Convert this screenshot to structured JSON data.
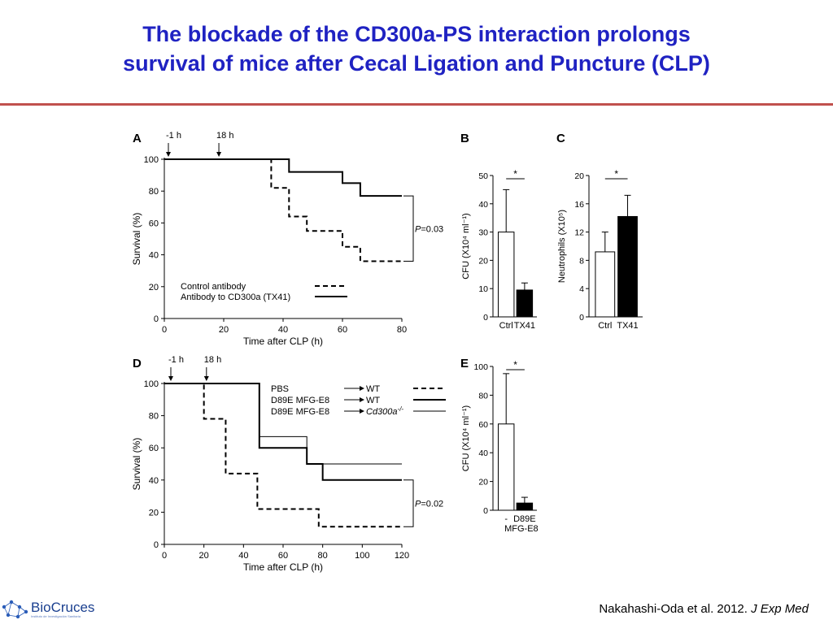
{
  "slide": {
    "title_line1": "The blockade of the CD300a-PS interaction prolongs",
    "title_line2": "survival of mice after Cecal Ligation and Puncture (CLP)",
    "citation_prefix": "Nakahashi-Oda et al. 2012.",
    "citation_journal": "J Exp Med",
    "logo_name": "BioCruces",
    "logo_subtext": "Instituto de Investigación Sanitaria"
  },
  "chart_data": [
    {
      "panel": "A",
      "type": "line",
      "xlabel": "Time after CLP (h)",
      "ylabel": "Survival (%)",
      "xlim": [
        0,
        80
      ],
      "ylim": [
        0,
        100
      ],
      "x_ticks": [
        "0",
        "20",
        "40",
        "60",
        "80"
      ],
      "y_ticks": [
        "0",
        "20",
        "40",
        "60",
        "80",
        "100"
      ],
      "arrows": [
        {
          "label": "-1 h",
          "x": 0
        },
        {
          "label": "18 h",
          "x": 17
        }
      ],
      "p_value": "P=0.03",
      "legend_placement": "bottom",
      "series": [
        {
          "name": "Control antibody",
          "style": "dashed",
          "x": [
            0,
            36,
            36,
            42,
            42,
            48,
            48,
            60,
            60,
            66,
            66,
            80
          ],
          "y": [
            100,
            100,
            82,
            82,
            64,
            64,
            55,
            55,
            45,
            45,
            36,
            36
          ]
        },
        {
          "name": "Antibody to CD300a (TX41)",
          "style": "solid",
          "x": [
            0,
            42,
            42,
            60,
            60,
            66,
            66,
            80
          ],
          "y": [
            100,
            100,
            92,
            92,
            85,
            85,
            77,
            77
          ]
        }
      ]
    },
    {
      "panel": "B",
      "type": "bar",
      "ylabel": "CFU  (X10⁴ ml⁻¹)",
      "categories": [
        "Ctrl",
        "TX41"
      ],
      "values": [
        30,
        9.5
      ],
      "errors": [
        15,
        2.5
      ],
      "ylim": [
        0,
        50
      ],
      "y_ticks": [
        "0",
        "10",
        "20",
        "30",
        "40",
        "50"
      ],
      "significance": "*",
      "fills": [
        "#ffffff",
        "#000000"
      ]
    },
    {
      "panel": "C",
      "type": "bar",
      "ylabel": "Neutrophils (X10⁵)",
      "categories": [
        "Ctrl",
        "TX41"
      ],
      "values": [
        9.2,
        14.2
      ],
      "errors": [
        2.8,
        3.0
      ],
      "ylim": [
        0,
        20
      ],
      "y_ticks": [
        "0",
        "4",
        "8",
        "12",
        "16",
        "20"
      ],
      "significance": "*",
      "fills": [
        "#ffffff",
        "#000000"
      ]
    },
    {
      "panel": "D",
      "type": "line",
      "xlabel": "Time after CLP (h)",
      "ylabel": "Survival (%)",
      "xlim": [
        0,
        120
      ],
      "ylim": [
        0,
        100
      ],
      "x_ticks": [
        "0",
        "20",
        "40",
        "60",
        "80",
        "100",
        "120"
      ],
      "y_ticks": [
        "0",
        "20",
        "40",
        "60",
        "80",
        "100"
      ],
      "arrows": [
        {
          "label": "-1 h",
          "x": 0
        },
        {
          "label": "18 h",
          "x": 18
        }
      ],
      "p_value": "P=0.02",
      "legend_placement": "top-right",
      "series": [
        {
          "name": "PBS",
          "target": "WT",
          "style": "dashed",
          "x": [
            0,
            20,
            20,
            31,
            31,
            47,
            47,
            78,
            78,
            120
          ],
          "y": [
            100,
            100,
            78,
            78,
            44,
            44,
            22,
            22,
            11,
            11
          ]
        },
        {
          "name": "D89E MFG-E8",
          "target": "WT",
          "style": "solid-thick",
          "x": [
            0,
            48,
            48,
            72,
            72,
            80,
            80,
            120
          ],
          "y": [
            100,
            100,
            60,
            60,
            50,
            50,
            40,
            40
          ]
        },
        {
          "name": "D89E MFG-E8",
          "target": "Cd300a",
          "target_sup": "-/-",
          "style": "solid-thin",
          "x": [
            0,
            48,
            48,
            72,
            72,
            120
          ],
          "y": [
            100,
            100,
            67,
            67,
            50,
            50
          ]
        }
      ]
    },
    {
      "panel": "E",
      "type": "bar",
      "ylabel": "CFU  (X10⁴ ml⁻¹)",
      "categories": [
        "-",
        "D89E"
      ],
      "category_sublabel": "MFG-E8",
      "values": [
        60,
        5
      ],
      "errors": [
        35,
        4
      ],
      "ylim": [
        0,
        100
      ],
      "y_ticks": [
        "0",
        "20",
        "40",
        "60",
        "80",
        "100"
      ],
      "significance": "*",
      "fills": [
        "#ffffff",
        "#000000"
      ]
    }
  ]
}
